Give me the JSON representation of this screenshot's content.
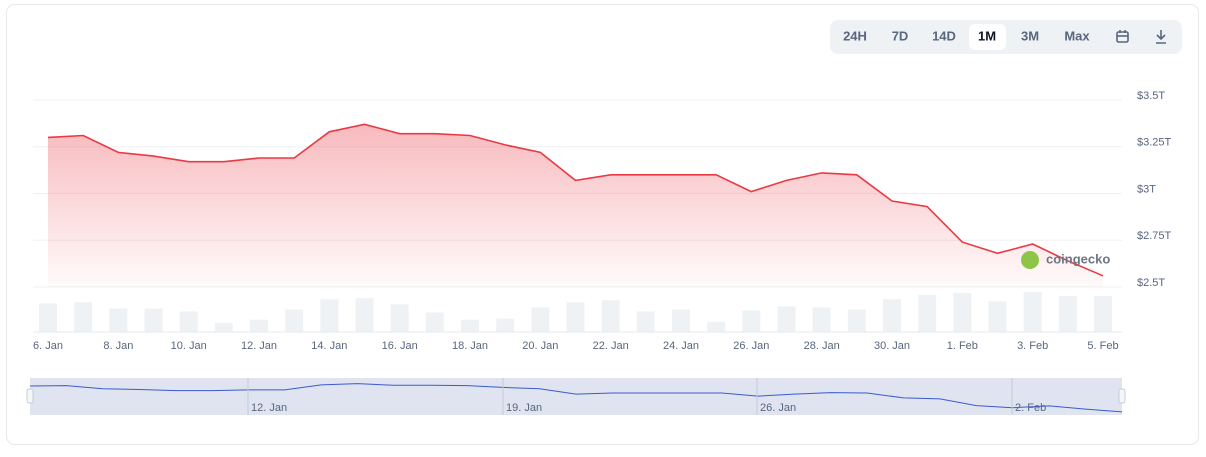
{
  "chart_data": {
    "type": "line",
    "categories": [
      "6. Jan",
      null,
      "8. Jan",
      null,
      "10. Jan",
      null,
      "12. Jan",
      null,
      "14. Jan",
      null,
      "16. Jan",
      null,
      "18. Jan",
      null,
      "20. Jan",
      null,
      "22. Jan",
      null,
      "24. Jan",
      null,
      "26. Jan",
      null,
      "28. Jan",
      null,
      "30. Jan",
      null,
      "1. Feb",
      null,
      "3. Feb",
      null,
      "5. Feb"
    ],
    "values": [
      3.3,
      3.31,
      3.22,
      3.2,
      3.17,
      3.17,
      3.19,
      3.19,
      3.33,
      3.37,
      3.32,
      3.32,
      3.31,
      3.26,
      3.22,
      3.07,
      3.1,
      3.1,
      3.1,
      3.1,
      3.01,
      3.07,
      3.11,
      3.1,
      2.96,
      2.93,
      2.74,
      2.68,
      2.73,
      2.64,
      2.56
    ],
    "volumes": [
      28,
      29,
      23,
      23,
      20,
      9,
      12,
      22,
      32,
      33,
      27,
      19,
      12,
      13,
      24,
      29,
      31,
      20,
      22,
      10,
      21,
      25,
      24,
      22,
      32,
      36,
      38,
      30,
      39,
      35,
      35
    ],
    "color": "#ea3943",
    "volume_color": "#eff2f5",
    "ylim": [
      2.5,
      3.5
    ],
    "yticks": [
      {
        "value": 2.5,
        "label": "$2.5T"
      },
      {
        "value": 2.75,
        "label": "$2.75T"
      },
      {
        "value": 3,
        "label": "$3T"
      },
      {
        "value": 3.25,
        "label": "$3.25T"
      },
      {
        "value": 3.5,
        "label": "$3.5T"
      }
    ],
    "grid": true,
    "watermark": "coingecko",
    "range_buttons": [
      "24H",
      "7D",
      "14D",
      "1M",
      "3M",
      "Max"
    ],
    "navigator_ticks": [
      "12. Jan",
      "19. Jan",
      "26. Jan",
      "2. Feb"
    ]
  }
}
